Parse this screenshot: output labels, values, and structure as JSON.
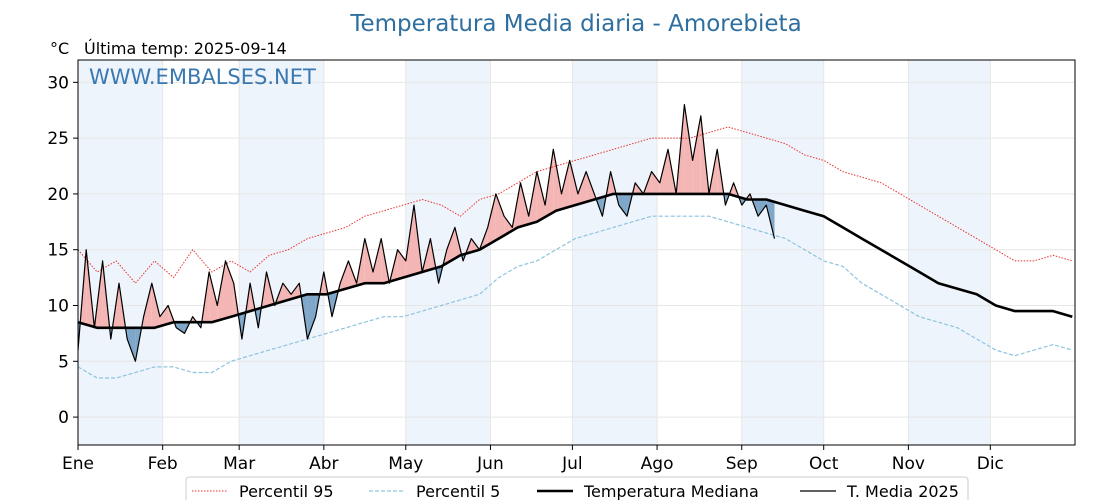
{
  "chart_data": {
    "type": "line",
    "title": "Temperatura Media diaria - Amorebieta",
    "unit_label": "°C",
    "subtitle": "Última temp: 2025-09-14",
    "watermark": "WWW.EMBALSES.NET",
    "xlabel": "",
    "ylabel": "",
    "x_tick_labels": [
      "Ene",
      "Feb",
      "Mar",
      "Abr",
      "May",
      "Jun",
      "Jul",
      "Ago",
      "Sep",
      "Oct",
      "Nov",
      "Dic"
    ],
    "month_start_days": [
      1,
      32,
      60,
      91,
      121,
      152,
      182,
      213,
      244,
      274,
      305,
      335
    ],
    "y_ticks": [
      0,
      5,
      10,
      15,
      20,
      25,
      30
    ],
    "xlim": [
      1,
      366
    ],
    "ylim": [
      -2.5,
      32
    ],
    "grid": true,
    "legend_position": "bottom",
    "colors": {
      "title": "#2f6f9f",
      "watermark": "#3a78b0",
      "p95": "#e8322c",
      "p5": "#8ec4de",
      "median": "#000000",
      "current": "#000000",
      "above_fill": "#f4b6b4",
      "below_fill": "#7fa7c9",
      "band": "#eef4fb"
    },
    "series": [
      {
        "name": "Percentil 95",
        "style": "dotted-red",
        "points": [
          [
            1,
            15
          ],
          [
            8,
            13
          ],
          [
            15,
            14
          ],
          [
            22,
            12
          ],
          [
            29,
            14
          ],
          [
            36,
            12.5
          ],
          [
            43,
            15
          ],
          [
            50,
            13
          ],
          [
            57,
            14
          ],
          [
            64,
            13
          ],
          [
            71,
            14.5
          ],
          [
            78,
            15
          ],
          [
            85,
            16
          ],
          [
            92,
            16.5
          ],
          [
            99,
            17
          ],
          [
            106,
            18
          ],
          [
            113,
            18.5
          ],
          [
            120,
            19
          ],
          [
            127,
            19.5
          ],
          [
            134,
            19
          ],
          [
            141,
            18
          ],
          [
            148,
            19.5
          ],
          [
            155,
            20
          ],
          [
            162,
            21
          ],
          [
            169,
            22
          ],
          [
            176,
            22.5
          ],
          [
            183,
            23
          ],
          [
            190,
            23.5
          ],
          [
            197,
            24
          ],
          [
            204,
            24.5
          ],
          [
            211,
            25
          ],
          [
            218,
            25
          ],
          [
            225,
            25
          ],
          [
            232,
            25.5
          ],
          [
            239,
            26
          ],
          [
            246,
            25.5
          ],
          [
            253,
            25
          ],
          [
            260,
            24.5
          ],
          [
            267,
            23.5
          ],
          [
            274,
            23
          ],
          [
            281,
            22
          ],
          [
            288,
            21.5
          ],
          [
            295,
            21
          ],
          [
            302,
            20
          ],
          [
            309,
            19
          ],
          [
            316,
            18
          ],
          [
            323,
            17
          ],
          [
            330,
            16
          ],
          [
            337,
            15
          ],
          [
            344,
            14
          ],
          [
            351,
            14
          ],
          [
            358,
            14.5
          ],
          [
            365,
            14
          ]
        ]
      },
      {
        "name": "Percentil 5",
        "style": "dashed-lightblue",
        "points": [
          [
            1,
            4.5
          ],
          [
            8,
            3.5
          ],
          [
            15,
            3.5
          ],
          [
            22,
            4
          ],
          [
            29,
            4.5
          ],
          [
            36,
            4.5
          ],
          [
            43,
            4
          ],
          [
            50,
            4
          ],
          [
            57,
            5
          ],
          [
            64,
            5.5
          ],
          [
            71,
            6
          ],
          [
            78,
            6.5
          ],
          [
            85,
            7
          ],
          [
            92,
            7.5
          ],
          [
            99,
            8
          ],
          [
            106,
            8.5
          ],
          [
            113,
            9
          ],
          [
            120,
            9
          ],
          [
            127,
            9.5
          ],
          [
            134,
            10
          ],
          [
            141,
            10.5
          ],
          [
            148,
            11
          ],
          [
            155,
            12.5
          ],
          [
            162,
            13.5
          ],
          [
            169,
            14
          ],
          [
            176,
            15
          ],
          [
            183,
            16
          ],
          [
            190,
            16.5
          ],
          [
            197,
            17
          ],
          [
            204,
            17.5
          ],
          [
            211,
            18
          ],
          [
            218,
            18
          ],
          [
            225,
            18
          ],
          [
            232,
            18
          ],
          [
            239,
            17.5
          ],
          [
            246,
            17
          ],
          [
            253,
            16.5
          ],
          [
            260,
            16
          ],
          [
            267,
            15
          ],
          [
            274,
            14
          ],
          [
            281,
            13.5
          ],
          [
            288,
            12
          ],
          [
            295,
            11
          ],
          [
            302,
            10
          ],
          [
            309,
            9
          ],
          [
            316,
            8.5
          ],
          [
            323,
            8
          ],
          [
            330,
            7
          ],
          [
            337,
            6
          ],
          [
            344,
            5.5
          ],
          [
            351,
            6
          ],
          [
            358,
            6.5
          ],
          [
            365,
            6
          ]
        ]
      },
      {
        "name": "Temperatura Mediana",
        "style": "thick-black",
        "points": [
          [
            1,
            8.5
          ],
          [
            8,
            8
          ],
          [
            15,
            8
          ],
          [
            22,
            8
          ],
          [
            29,
            8
          ],
          [
            36,
            8.5
          ],
          [
            43,
            8.5
          ],
          [
            50,
            8.5
          ],
          [
            57,
            9
          ],
          [
            64,
            9.5
          ],
          [
            71,
            10
          ],
          [
            78,
            10.5
          ],
          [
            85,
            11
          ],
          [
            92,
            11
          ],
          [
            99,
            11.5
          ],
          [
            106,
            12
          ],
          [
            113,
            12
          ],
          [
            120,
            12.5
          ],
          [
            127,
            13
          ],
          [
            134,
            13.5
          ],
          [
            141,
            14.5
          ],
          [
            148,
            15
          ],
          [
            155,
            16
          ],
          [
            162,
            17
          ],
          [
            169,
            17.5
          ],
          [
            176,
            18.5
          ],
          [
            183,
            19
          ],
          [
            190,
            19.5
          ],
          [
            197,
            20
          ],
          [
            204,
            20
          ],
          [
            211,
            20
          ],
          [
            218,
            20
          ],
          [
            225,
            20
          ],
          [
            232,
            20
          ],
          [
            239,
            20
          ],
          [
            246,
            19.5
          ],
          [
            253,
            19.5
          ],
          [
            260,
            19
          ],
          [
            267,
            18.5
          ],
          [
            274,
            18
          ],
          [
            281,
            17
          ],
          [
            288,
            16
          ],
          [
            295,
            15
          ],
          [
            302,
            14
          ],
          [
            309,
            13
          ],
          [
            316,
            12
          ],
          [
            323,
            11.5
          ],
          [
            330,
            11
          ],
          [
            337,
            10
          ],
          [
            344,
            9.5
          ],
          [
            351,
            9.5
          ],
          [
            358,
            9.5
          ],
          [
            365,
            9
          ]
        ]
      },
      {
        "name": "T. Media 2025",
        "style": "thin-black",
        "points": [
          [
            1,
            6
          ],
          [
            4,
            15
          ],
          [
            7,
            8
          ],
          [
            10,
            14
          ],
          [
            13,
            7
          ],
          [
            16,
            12
          ],
          [
            19,
            7
          ],
          [
            22,
            5
          ],
          [
            25,
            9
          ],
          [
            28,
            12
          ],
          [
            31,
            9
          ],
          [
            34,
            10
          ],
          [
            37,
            8
          ],
          [
            40,
            7.5
          ],
          [
            43,
            9
          ],
          [
            46,
            8
          ],
          [
            49,
            13
          ],
          [
            52,
            10
          ],
          [
            55,
            14
          ],
          [
            58,
            12
          ],
          [
            61,
            7
          ],
          [
            64,
            12
          ],
          [
            67,
            8
          ],
          [
            70,
            13
          ],
          [
            73,
            10
          ],
          [
            76,
            12
          ],
          [
            79,
            11
          ],
          [
            82,
            12
          ],
          [
            85,
            7
          ],
          [
            88,
            9
          ],
          [
            91,
            13
          ],
          [
            94,
            9
          ],
          [
            97,
            12
          ],
          [
            100,
            14
          ],
          [
            103,
            12
          ],
          [
            106,
            16
          ],
          [
            109,
            13
          ],
          [
            112,
            16
          ],
          [
            115,
            12
          ],
          [
            118,
            15
          ],
          [
            121,
            14
          ],
          [
            124,
            19
          ],
          [
            127,
            13
          ],
          [
            130,
            16
          ],
          [
            133,
            12
          ],
          [
            136,
            15
          ],
          [
            139,
            17
          ],
          [
            142,
            14
          ],
          [
            145,
            16
          ],
          [
            148,
            15
          ],
          [
            151,
            17
          ],
          [
            154,
            20
          ],
          [
            157,
            18
          ],
          [
            160,
            17
          ],
          [
            163,
            21
          ],
          [
            166,
            18
          ],
          [
            169,
            22
          ],
          [
            172,
            19
          ],
          [
            175,
            24
          ],
          [
            178,
            20
          ],
          [
            181,
            23
          ],
          [
            184,
            20
          ],
          [
            187,
            22
          ],
          [
            190,
            20
          ],
          [
            193,
            18
          ],
          [
            196,
            22
          ],
          [
            199,
            19
          ],
          [
            202,
            18
          ],
          [
            205,
            21
          ],
          [
            208,
            20
          ],
          [
            211,
            22
          ],
          [
            214,
            21
          ],
          [
            217,
            24
          ],
          [
            220,
            20
          ],
          [
            223,
            28
          ],
          [
            226,
            23
          ],
          [
            229,
            27
          ],
          [
            232,
            20
          ],
          [
            235,
            24
          ],
          [
            238,
            19
          ],
          [
            241,
            21
          ],
          [
            244,
            19
          ],
          [
            247,
            20
          ],
          [
            250,
            18
          ],
          [
            253,
            19
          ],
          [
            256,
            16
          ]
        ]
      }
    ],
    "legend": [
      "Percentil 95",
      "Percentil 5",
      "Temperatura Mediana",
      "T. Media 2025"
    ]
  }
}
